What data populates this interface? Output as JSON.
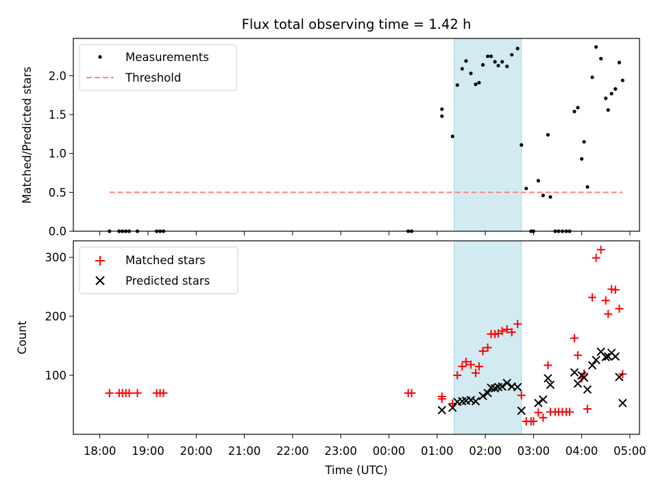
{
  "chart_data": [
    {
      "type": "scatter",
      "title": "Flux total observing time = 1.42 h",
      "ylabel": "Matched/Predicted stars",
      "xlabel": "",
      "ylim": [
        0,
        2.48
      ],
      "yticks": [
        "0.0",
        "0.5",
        "1.0",
        "1.5",
        "2.0"
      ],
      "ytick_values": [
        0,
        0.5,
        1.0,
        1.5,
        2.0
      ],
      "highlight_span": [
        7.35,
        8.75
      ],
      "legend": {
        "position": "top-left",
        "entries": [
          "Measurements",
          "Threshold"
        ]
      },
      "threshold": {
        "name": "Threshold",
        "value": 0.5,
        "x_range": [
          0.2,
          10.85
        ],
        "color": "#ff7f7f"
      },
      "series": [
        {
          "name": "Measurements",
          "color": "#000000",
          "x": [
            0.2,
            0.4,
            0.47,
            0.54,
            0.61,
            0.78,
            1.18,
            1.25,
            1.32,
            6.4,
            6.47,
            7.1,
            7.1,
            7.32,
            7.42,
            7.52,
            7.6,
            7.7,
            7.8,
            7.87,
            7.95,
            8.05,
            8.12,
            8.2,
            8.27,
            8.35,
            8.45,
            8.55,
            8.67,
            8.75,
            8.85,
            8.95,
            9.0,
            9.1,
            9.2,
            9.3,
            9.35,
            9.45,
            9.52,
            9.6,
            9.68,
            9.75,
            9.85,
            9.92,
            10.0,
            10.05,
            10.12,
            10.22,
            10.3,
            10.4,
            10.5,
            10.55,
            10.62,
            10.7,
            10.78,
            10.85
          ],
          "y": [
            0,
            0,
            0,
            0,
            0,
            0,
            0,
            0,
            0,
            0,
            0,
            1.57,
            1.48,
            1.22,
            1.88,
            2.09,
            2.19,
            2.03,
            1.89,
            1.91,
            2.14,
            2.25,
            2.25,
            2.18,
            2.13,
            2.18,
            2.12,
            2.27,
            2.35,
            1.11,
            0.55,
            0,
            0,
            0.65,
            0.46,
            1.24,
            0.44,
            0,
            0,
            0,
            0,
            0,
            1.54,
            1.59,
            0.93,
            1.15,
            0.57,
            1.98,
            2.37,
            2.22,
            1.71,
            1.56,
            1.77,
            1.83,
            2.17,
            1.94
          ]
        }
      ]
    },
    {
      "type": "scatter",
      "title": "",
      "ylabel": "Count",
      "xlabel": "Time (UTC)",
      "ylim": [
        0,
        328
      ],
      "yticks": [
        "100",
        "200",
        "300"
      ],
      "ytick_values": [
        100,
        200,
        300
      ],
      "xlim": [
        -0.55,
        11.2
      ],
      "xticks": [
        "18:00",
        "19:00",
        "20:00",
        "21:00",
        "22:00",
        "23:00",
        "00:00",
        "01:00",
        "02:00",
        "03:00",
        "04:00",
        "05:00"
      ],
      "xtick_values": [
        0,
        1,
        2,
        3,
        4,
        5,
        6,
        7,
        8,
        9,
        10,
        11
      ],
      "highlight_span": [
        7.35,
        8.75
      ],
      "legend": {
        "position": "top-left",
        "entries": [
          "Matched stars",
          "Predicted stars"
        ]
      },
      "series": [
        {
          "name": "Matched stars",
          "marker": "+",
          "color": "#ff0000",
          "x": [
            0.2,
            0.4,
            0.47,
            0.54,
            0.61,
            0.78,
            1.18,
            1.25,
            1.32,
            6.4,
            6.47,
            7.1,
            7.1,
            7.32,
            7.42,
            7.52,
            7.6,
            7.7,
            7.8,
            7.87,
            7.95,
            8.05,
            8.12,
            8.2,
            8.27,
            8.35,
            8.45,
            8.55,
            8.67,
            8.75,
            8.85,
            8.95,
            9.0,
            9.1,
            9.2,
            9.3,
            9.35,
            9.45,
            9.52,
            9.6,
            9.68,
            9.75,
            9.85,
            9.92,
            10.0,
            10.05,
            10.12,
            10.22,
            10.3,
            10.4,
            10.5,
            10.55,
            10.62,
            10.7,
            10.78,
            10.85
          ],
          "y": [
            70,
            70,
            70,
            70,
            70,
            70,
            70,
            70,
            70,
            70,
            70,
            64,
            60,
            52,
            100,
            115,
            123,
            118,
            104,
            115,
            141,
            147,
            170,
            170,
            171,
            175,
            178,
            173,
            187,
            66,
            22,
            22,
            22,
            37,
            28,
            117,
            38,
            38,
            38,
            38,
            38,
            38,
            163,
            134,
            95,
            103,
            43,
            232,
            299,
            313,
            227,
            204,
            246,
            245,
            213,
            102
          ]
        },
        {
          "name": "Predicted stars",
          "marker": "x",
          "color": "#000000",
          "x": [
            7.1,
            7.32,
            7.42,
            7.52,
            7.6,
            7.7,
            7.8,
            7.95,
            8.05,
            8.12,
            8.2,
            8.27,
            8.35,
            8.45,
            8.55,
            8.67,
            8.75,
            9.1,
            9.2,
            9.3,
            9.35,
            9.85,
            9.92,
            10.0,
            10.05,
            10.12,
            10.22,
            10.3,
            10.4,
            10.5,
            10.55,
            10.62,
            10.7,
            10.78,
            10.85
          ],
          "y": [
            41,
            45,
            55,
            56,
            57,
            58,
            56,
            65,
            70,
            79,
            78,
            80,
            81,
            87,
            81,
            80,
            40,
            53,
            59,
            95,
            84,
            105,
            86,
            100,
            96,
            76,
            117,
            126,
            140,
            131,
            132,
            138,
            132,
            97,
            53
          ]
        }
      ]
    }
  ]
}
